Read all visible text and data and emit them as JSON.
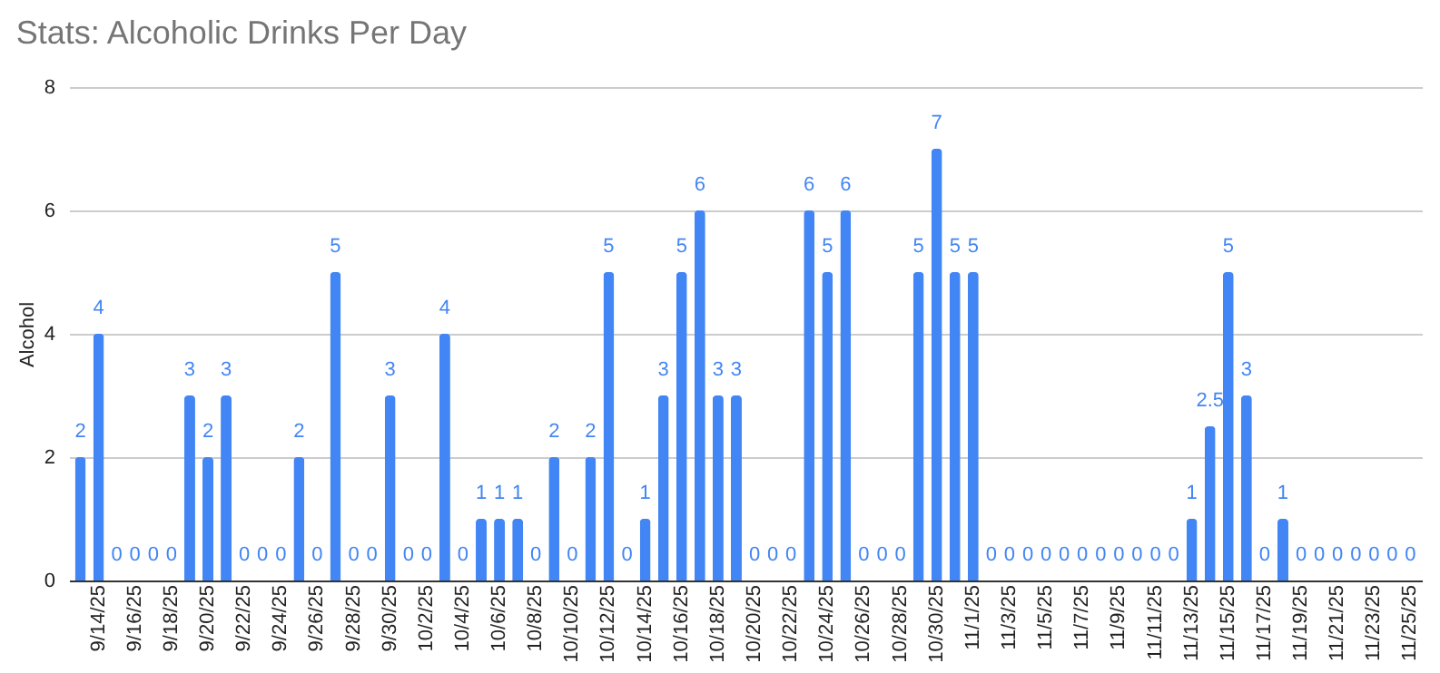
{
  "chart_data": {
    "type": "bar",
    "title": "Stats: Alcoholic Drinks Per Day",
    "ylabel": "Alcohol",
    "categories": [
      null,
      "9/14/25",
      null,
      "9/16/25",
      null,
      "9/18/25",
      null,
      "9/20/25",
      null,
      "9/22/25",
      null,
      "9/24/25",
      null,
      "9/26/25",
      null,
      "9/28/25",
      null,
      "9/30/25",
      null,
      "10/2/25",
      null,
      "10/4/25",
      null,
      "10/6/25",
      null,
      "10/8/25",
      null,
      "10/10/25",
      null,
      "10/12/25",
      null,
      "10/14/25",
      null,
      "10/16/25",
      null,
      "10/18/25",
      null,
      "10/20/25",
      null,
      "10/22/25",
      null,
      "10/24/25",
      null,
      "10/26/25",
      null,
      "10/28/25",
      null,
      "10/30/25",
      null,
      "11/1/25",
      null,
      "11/3/25",
      null,
      "11/5/25",
      null,
      "11/7/25",
      null,
      "11/9/25",
      null,
      "11/11/25",
      null,
      "11/13/25",
      null,
      "11/15/25",
      null,
      "11/17/25",
      null,
      "11/19/25",
      null,
      "11/21/25",
      null,
      "11/23/25",
      null,
      "11/25/25"
    ],
    "values": [
      2,
      4,
      0,
      0,
      0,
      0,
      3,
      2,
      3,
      0,
      0,
      0,
      2,
      0,
      5,
      0,
      0,
      3,
      0,
      0,
      4,
      0,
      1,
      1,
      1,
      0,
      2,
      0,
      2,
      5,
      0,
      1,
      3,
      5,
      6,
      3,
      3,
      0,
      0,
      0,
      6,
      5,
      6,
      0,
      0,
      0,
      5,
      7,
      5,
      5,
      0,
      0,
      0,
      0,
      0,
      0,
      0,
      0,
      0,
      0,
      0,
      1,
      2.5,
      5,
      3,
      0,
      1,
      0,
      0,
      0,
      0,
      0,
      0,
      0
    ],
    "color": "#4285f4",
    "ylim": [
      0,
      8
    ],
    "yticks": [
      0,
      2,
      4,
      6,
      8
    ],
    "grid": "y",
    "data_labels": true
  }
}
